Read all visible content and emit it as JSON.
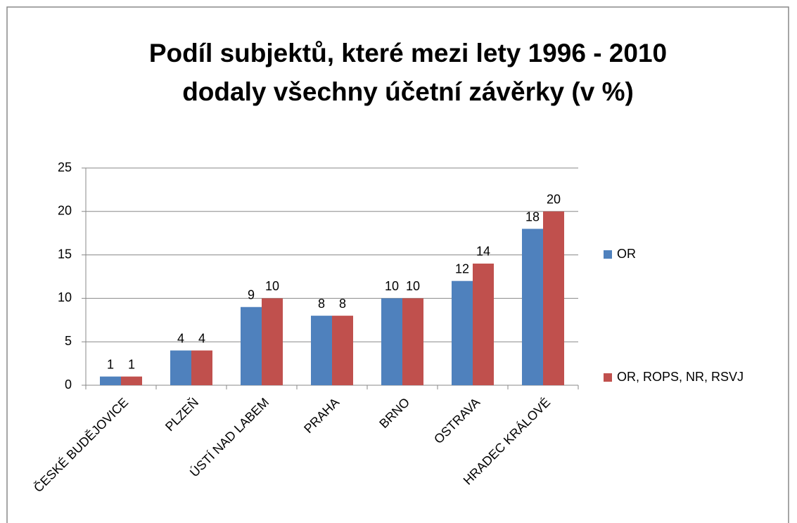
{
  "chart_data": {
    "type": "bar",
    "title": [
      "Podíl subjektů, které mezi lety 1996 - 2010",
      "dodaly všechny účetní závěrky (v %)"
    ],
    "categories": [
      "ČESKÉ BUDĚJOVICE",
      "PLZEŇ",
      "ÚSTÍ NAD LABEM",
      "PRAHA",
      "BRNO",
      "OSTRAVA",
      "HRADEC KRÁLOVÉ"
    ],
    "series": [
      {
        "name": "OR",
        "color": "#4f81bd",
        "values": [
          1,
          4,
          9,
          8,
          10,
          12,
          18
        ]
      },
      {
        "name": "OR, ROPS, NR, RSVJ",
        "color": "#c0504d",
        "values": [
          1,
          4,
          10,
          8,
          10,
          14,
          20
        ]
      }
    ],
    "ylim": [
      0,
      25
    ],
    "yticks": [
      0,
      5,
      10,
      15,
      20,
      25
    ],
    "grid": true,
    "legend": "right"
  }
}
